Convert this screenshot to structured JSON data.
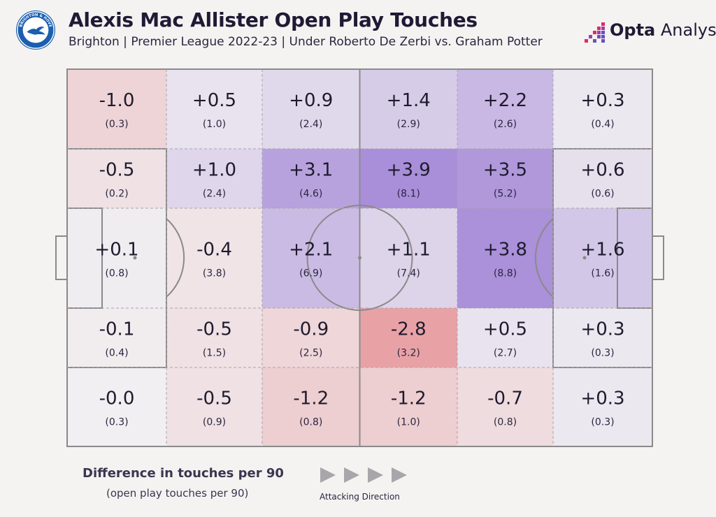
{
  "header": {
    "title": "Alexis Mac Allister Open Play Touches",
    "subtitle": "Brighton | Premier League 2022-23 | Under Roberto De Zerbi vs. Graham Potter"
  },
  "branding": {
    "crest_text_top": "BRIGHTON & HOVE",
    "crest_text_bottom": "ALBION",
    "logo_bold": "Opta",
    "logo_rest": " Analyst",
    "logo_colors": [
      "#e0286e",
      "#9b3fae",
      "#6a4fbf"
    ]
  },
  "colors": {
    "positive": "#a98ed9",
    "negative": "#e8a2a6",
    "neutral": "#f1eff1",
    "lines": "#8a8a8a",
    "background": "#f4f3f1"
  },
  "chart_data": {
    "type": "heatmap",
    "metric": "Difference in touches per 90",
    "secondary_metric": "open play touches per 90",
    "direction": "Attacking Direction",
    "columns": 6,
    "rows": 5,
    "cells": [
      [
        {
          "diff": "-1.0",
          "v": -1.0,
          "total": "(0.3)"
        },
        {
          "diff": "+0.5",
          "v": 0.5,
          "total": "(1.0)"
        },
        {
          "diff": "+0.9",
          "v": 0.9,
          "total": "(2.4)"
        },
        {
          "diff": "+1.4",
          "v": 1.4,
          "total": "(2.9)"
        },
        {
          "diff": "+2.2",
          "v": 2.2,
          "total": "(2.6)"
        },
        {
          "diff": "+0.3",
          "v": 0.3,
          "total": "(0.4)"
        }
      ],
      [
        {
          "diff": "-0.5",
          "v": -0.5,
          "total": "(0.2)"
        },
        {
          "diff": "+1.0",
          "v": 1.0,
          "total": "(2.4)"
        },
        {
          "diff": "+3.1",
          "v": 3.1,
          "total": "(4.6)"
        },
        {
          "diff": "+3.9",
          "v": 3.9,
          "total": "(8.1)"
        },
        {
          "diff": "+3.5",
          "v": 3.5,
          "total": "(5.2)"
        },
        {
          "diff": "+0.6",
          "v": 0.6,
          "total": "(0.6)"
        }
      ],
      [
        {
          "diff": "+0.1",
          "v": 0.1,
          "total": "(0.8)"
        },
        {
          "diff": "-0.4",
          "v": -0.4,
          "total": "(3.8)"
        },
        {
          "diff": "+2.1",
          "v": 2.1,
          "total": "(6.9)"
        },
        {
          "diff": "+1.1",
          "v": 1.1,
          "total": "(7.4)"
        },
        {
          "diff": "+3.8",
          "v": 3.8,
          "total": "(8.8)"
        },
        {
          "diff": "+1.6",
          "v": 1.6,
          "total": "(1.6)"
        }
      ],
      [
        {
          "diff": "-0.1",
          "v": -0.1,
          "total": "(0.4)"
        },
        {
          "diff": "-0.5",
          "v": -0.5,
          "total": "(1.5)"
        },
        {
          "diff": "-0.9",
          "v": -0.9,
          "total": "(2.5)"
        },
        {
          "diff": "-2.8",
          "v": -2.8,
          "total": "(3.2)"
        },
        {
          "diff": "+0.5",
          "v": 0.5,
          "total": "(2.7)"
        },
        {
          "diff": "+0.3",
          "v": 0.3,
          "total": "(0.3)"
        }
      ],
      [
        {
          "diff": "-0.0",
          "v": 0.0,
          "total": "(0.3)"
        },
        {
          "diff": "-0.5",
          "v": -0.5,
          "total": "(0.9)"
        },
        {
          "diff": "-1.2",
          "v": -1.2,
          "total": "(0.8)"
        },
        {
          "diff": "-1.2",
          "v": -1.2,
          "total": "(1.0)"
        },
        {
          "diff": "-0.7",
          "v": -0.7,
          "total": "(0.8)"
        },
        {
          "diff": "+0.3",
          "v": 0.3,
          "total": "(0.3)"
        }
      ]
    ]
  },
  "legend": {
    "title": "Difference in touches per 90",
    "subtitle": "(open play touches per 90)",
    "direction_label": "Attacking Direction",
    "arrow_count": 4
  }
}
